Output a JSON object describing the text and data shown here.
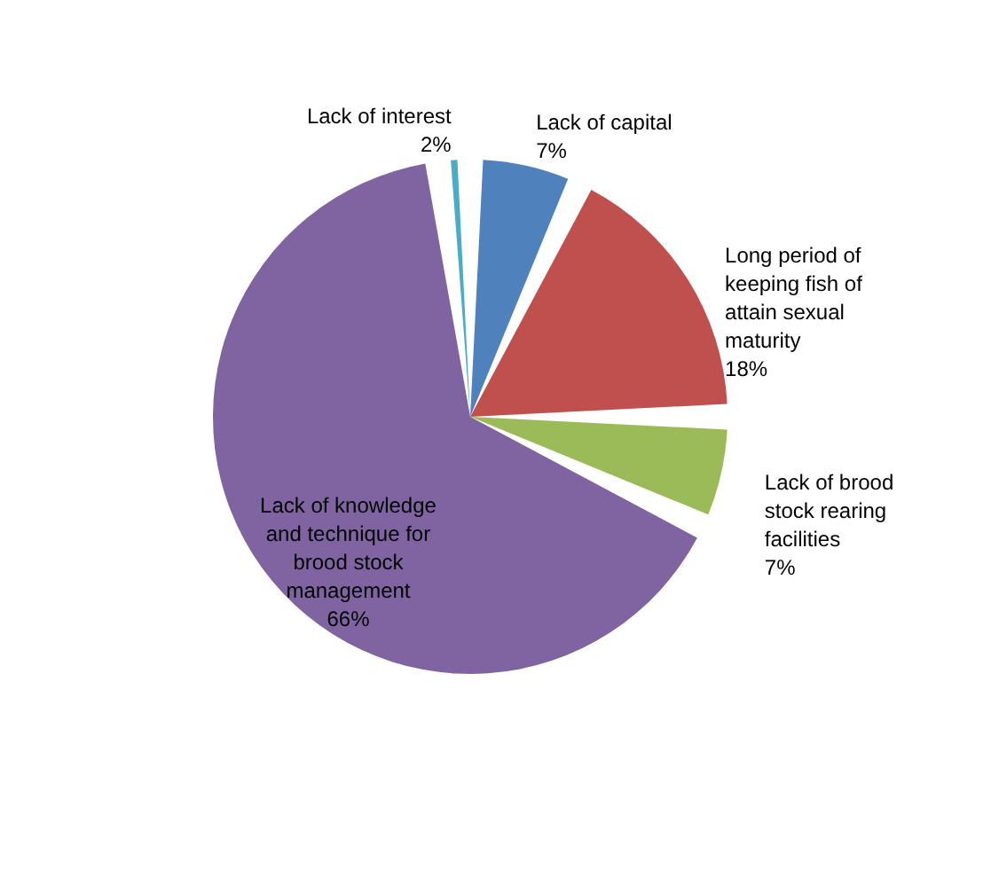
{
  "chart_data": {
    "type": "pie",
    "categories": [
      "Lack of capital",
      "Long period of keeping fish of attain sexual maturity",
      "Lack of brood stock rearing facilities",
      "Lack of knowledge and technique for brood stock management",
      "Lack of interest"
    ],
    "values": [
      7,
      18,
      7,
      66,
      2
    ],
    "value_labels": [
      "7%",
      "18%",
      "7%",
      "66%",
      "2%"
    ],
    "colors": [
      "#4f81bd",
      "#c0504d",
      "#9bbb59",
      "#8064a2",
      "#4bacc6"
    ],
    "legend": false
  }
}
